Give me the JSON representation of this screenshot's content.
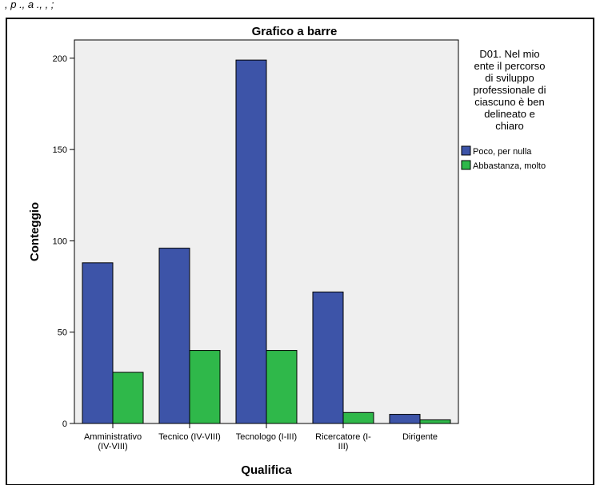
{
  "chart_data": {
    "type": "bar",
    "title": "Grafico a barre",
    "xlabel": "Qualifica",
    "ylabel": "Conteggio",
    "ylim": [
      0,
      210
    ],
    "yticks": [
      0,
      50,
      100,
      150,
      200
    ],
    "ytick_labels": [
      "0",
      "50",
      "100",
      "150",
      "200"
    ],
    "categories": [
      [
        "Amministrativo",
        "(IV-VIII)"
      ],
      [
        "Tecnico (IV-VIII)"
      ],
      [
        "Tecnologo (I-III)"
      ],
      [
        "Ricercatore (I-",
        "III)"
      ],
      [
        "Dirigente"
      ]
    ],
    "series": [
      {
        "name": "Poco, per nulla",
        "values": [
          88,
          96,
          199,
          72,
          5
        ]
      },
      {
        "name": "Abbastanza, molto",
        "values": [
          28,
          40,
          40,
          6,
          2
        ]
      }
    ],
    "legend": {
      "title_lines": [
        "D01. Nel mio",
        "ente il percorso",
        "di sviluppo",
        "professionale di",
        "ciascuno è ben",
        "delineato e",
        "chiaro"
      ],
      "placement": "right"
    },
    "grid": false,
    "colors": {
      "series": [
        "#3d54a8",
        "#2fb84a"
      ],
      "plot_bg": "#efefef",
      "frame": "#000000"
    },
    "page_prefix": ", p ., a ., , ;"
  }
}
